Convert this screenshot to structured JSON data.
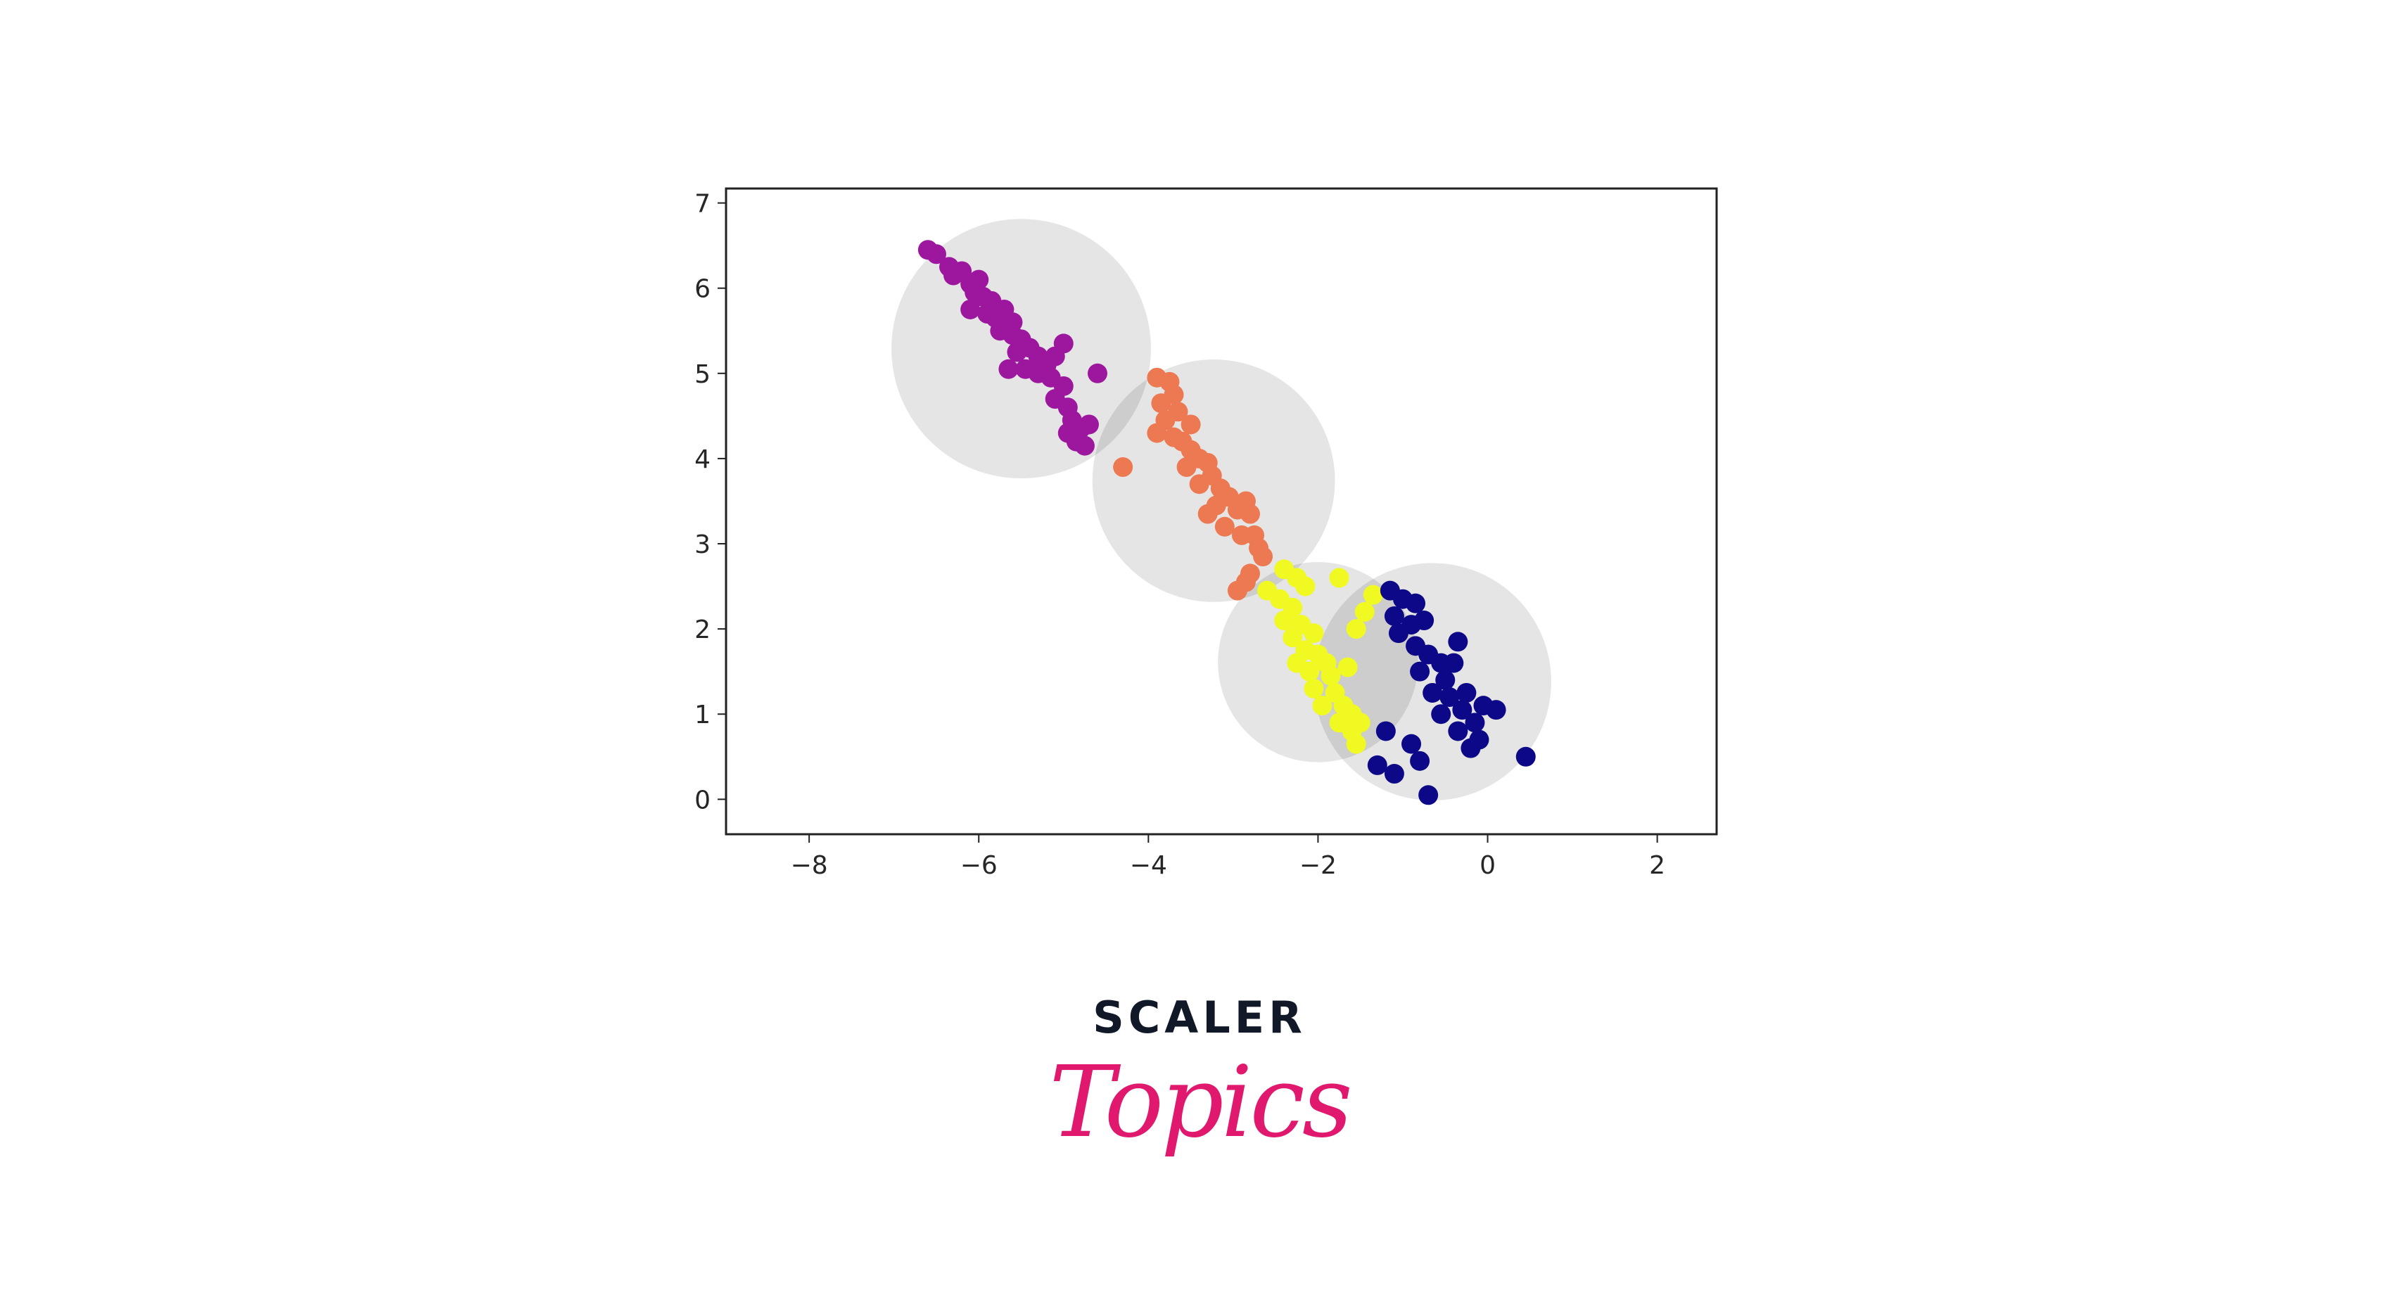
{
  "chart_data": {
    "type": "scatter",
    "title": "",
    "xlabel": "",
    "ylabel": "",
    "xlim": [
      -8.98,
      2.7
    ],
    "ylim": [
      -0.41,
      7.17
    ],
    "xticks": [
      -8,
      -6,
      -4,
      -2,
      0,
      2
    ],
    "xtick_labels": [
      "−8",
      "−6",
      "−4",
      "−2",
      "0",
      "2"
    ],
    "yticks": [
      0,
      1,
      2,
      3,
      4,
      5,
      6,
      7
    ],
    "ytick_labels": [
      "0",
      "1",
      "2",
      "3",
      "4",
      "5",
      "6",
      "7"
    ],
    "grid": false,
    "circle_color": "#000000",
    "series": [
      {
        "color": "#9c179e",
        "center": [
          -5.5,
          5.29
        ],
        "radius": 1.53,
        "points": [
          [
            -6.6,
            6.45
          ],
          [
            -6.5,
            6.4
          ],
          [
            -6.35,
            6.25
          ],
          [
            -6.3,
            6.15
          ],
          [
            -6.2,
            6.2
          ],
          [
            -6.1,
            6.05
          ],
          [
            -6.0,
            6.1
          ],
          [
            -6.05,
            5.95
          ],
          [
            -5.95,
            5.9
          ],
          [
            -5.85,
            5.85
          ],
          [
            -6.1,
            5.75
          ],
          [
            -5.9,
            5.7
          ],
          [
            -5.8,
            5.65
          ],
          [
            -5.7,
            5.75
          ],
          [
            -5.75,
            5.5
          ],
          [
            -5.6,
            5.45
          ],
          [
            -5.5,
            5.4
          ],
          [
            -5.55,
            5.25
          ],
          [
            -5.4,
            5.3
          ],
          [
            -5.3,
            5.2
          ],
          [
            -5.45,
            5.05
          ],
          [
            -5.2,
            5.1
          ],
          [
            -5.1,
            5.2
          ],
          [
            -5.15,
            4.95
          ],
          [
            -5.0,
            4.85
          ],
          [
            -5.1,
            4.7
          ],
          [
            -4.95,
            4.6
          ],
          [
            -4.9,
            4.45
          ],
          [
            -4.8,
            4.35
          ],
          [
            -4.7,
            4.4
          ],
          [
            -4.85,
            4.2
          ],
          [
            -4.75,
            4.15
          ],
          [
            -5.3,
            5.0
          ],
          [
            -5.6,
            5.6
          ],
          [
            -4.6,
            5.0
          ],
          [
            -5.0,
            5.35
          ],
          [
            -5.65,
            5.05
          ],
          [
            -4.95,
            4.3
          ]
        ]
      },
      {
        "color": "#ed7953",
        "center": [
          -3.23,
          3.74
        ],
        "radius": 1.43,
        "points": [
          [
            -3.9,
            4.95
          ],
          [
            -3.75,
            4.9
          ],
          [
            -3.7,
            4.75
          ],
          [
            -3.85,
            4.65
          ],
          [
            -3.65,
            4.55
          ],
          [
            -3.8,
            4.45
          ],
          [
            -3.9,
            4.3
          ],
          [
            -3.7,
            4.25
          ],
          [
            -3.6,
            4.2
          ],
          [
            -3.5,
            4.1
          ],
          [
            -3.4,
            4.0
          ],
          [
            -3.55,
            3.9
          ],
          [
            -3.3,
            3.95
          ],
          [
            -3.25,
            3.8
          ],
          [
            -3.4,
            3.7
          ],
          [
            -3.15,
            3.65
          ],
          [
            -3.05,
            3.55
          ],
          [
            -3.2,
            3.45
          ],
          [
            -2.95,
            3.4
          ],
          [
            -2.85,
            3.5
          ],
          [
            -2.8,
            3.35
          ],
          [
            -3.3,
            3.35
          ],
          [
            -3.1,
            3.2
          ],
          [
            -2.9,
            3.1
          ],
          [
            -2.75,
            3.1
          ],
          [
            -2.7,
            2.95
          ],
          [
            -2.65,
            2.85
          ],
          [
            -2.8,
            2.65
          ],
          [
            -2.85,
            2.55
          ],
          [
            -2.95,
            2.45
          ],
          [
            -4.3,
            3.9
          ],
          [
            -3.5,
            4.4
          ]
        ]
      },
      {
        "color": "#f0f921",
        "center": [
          -2.0,
          1.61
        ],
        "radius": 1.18,
        "points": [
          [
            -2.4,
            2.7
          ],
          [
            -2.25,
            2.6
          ],
          [
            -1.75,
            2.6
          ],
          [
            -2.15,
            2.5
          ],
          [
            -2.6,
            2.45
          ],
          [
            -2.45,
            2.35
          ],
          [
            -2.3,
            2.25
          ],
          [
            -1.35,
            2.4
          ],
          [
            -1.45,
            2.2
          ],
          [
            -1.55,
            2.0
          ],
          [
            -2.4,
            2.1
          ],
          [
            -2.2,
            2.05
          ],
          [
            -2.3,
            1.9
          ],
          [
            -2.05,
            1.95
          ],
          [
            -2.15,
            1.75
          ],
          [
            -2.0,
            1.7
          ],
          [
            -1.9,
            1.6
          ],
          [
            -2.1,
            1.5
          ],
          [
            -1.85,
            1.45
          ],
          [
            -1.65,
            1.55
          ],
          [
            -2.05,
            1.3
          ],
          [
            -1.8,
            1.25
          ],
          [
            -1.7,
            1.1
          ],
          [
            -1.95,
            1.1
          ],
          [
            -1.6,
            1.0
          ],
          [
            -1.75,
            0.9
          ],
          [
            -1.6,
            0.8
          ],
          [
            -1.55,
            0.65
          ],
          [
            -1.5,
            0.9
          ],
          [
            -2.25,
            1.6
          ]
        ]
      },
      {
        "color": "#0d0887",
        "center": [
          -0.65,
          1.38
        ],
        "radius": 1.4,
        "points": [
          [
            -1.15,
            2.45
          ],
          [
            -1.0,
            2.35
          ],
          [
            -0.85,
            2.3
          ],
          [
            -1.1,
            2.15
          ],
          [
            -0.9,
            2.05
          ],
          [
            -0.75,
            2.1
          ],
          [
            -1.05,
            1.95
          ],
          [
            -0.85,
            1.8
          ],
          [
            -0.7,
            1.7
          ],
          [
            -0.35,
            1.85
          ],
          [
            -0.55,
            1.6
          ],
          [
            -0.8,
            1.5
          ],
          [
            -0.5,
            1.4
          ],
          [
            -0.65,
            1.25
          ],
          [
            -0.45,
            1.2
          ],
          [
            -0.25,
            1.25
          ],
          [
            -0.3,
            1.05
          ],
          [
            -0.05,
            1.1
          ],
          [
            0.1,
            1.05
          ],
          [
            -0.15,
            0.9
          ],
          [
            -0.35,
            0.8
          ],
          [
            -0.1,
            0.7
          ],
          [
            -0.2,
            0.6
          ],
          [
            -1.2,
            0.8
          ],
          [
            -0.9,
            0.65
          ],
          [
            -0.8,
            0.45
          ],
          [
            -1.3,
            0.4
          ],
          [
            -1.1,
            0.3
          ],
          [
            0.45,
            0.5
          ],
          [
            -0.7,
            0.05
          ],
          [
            -0.55,
            1.0
          ],
          [
            -0.4,
            1.6
          ]
        ]
      }
    ]
  },
  "logo": {
    "brand": "SCALER",
    "sub": "Topics",
    "brand_color": "#111827",
    "sub_color": "#e0196f"
  }
}
